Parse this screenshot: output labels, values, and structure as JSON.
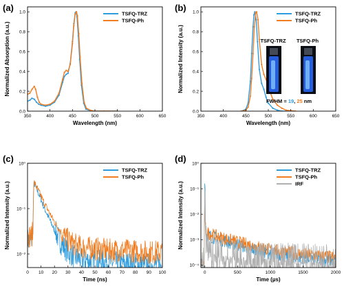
{
  "colors": {
    "trz": "#2e9bdc",
    "ph": "#f07d22",
    "irf": "#b0b0b0",
    "vial_glow": "#2a6cff"
  },
  "chart_data": [
    {
      "panel_label": "(a)",
      "type": "line",
      "xlabel": "Wavelength (nm)",
      "ylabel": "Normalized Absorption (a.u.)",
      "xlim": [
        350,
        650
      ],
      "ylim": [
        0,
        1.05
      ],
      "xticks": [
        350,
        400,
        450,
        500,
        550,
        600,
        650
      ],
      "xtick_labels": [
        "350",
        "400",
        "450",
        "500",
        "550",
        "600",
        "650"
      ],
      "yticks": [
        0,
        0.2,
        0.4,
        0.6,
        0.8,
        1.0
      ],
      "ytick_labels": [
        "0.0",
        "0.2",
        "0.4",
        "0.6",
        "0.8",
        "1.0"
      ],
      "legend": "top-right",
      "series": [
        {
          "name": "TSFQ-TRZ",
          "color": "#2e9bdc",
          "x": [
            350,
            355,
            360,
            365,
            370,
            375,
            380,
            390,
            400,
            410,
            420,
            428,
            432,
            436,
            440,
            445,
            450,
            453,
            456,
            458,
            460,
            463,
            466,
            470,
            475,
            480,
            490,
            500,
            520,
            550
          ],
          "y": [
            0.1,
            0.11,
            0.13,
            0.12,
            0.09,
            0.07,
            0.06,
            0.05,
            0.06,
            0.09,
            0.16,
            0.29,
            0.35,
            0.37,
            0.38,
            0.48,
            0.7,
            0.88,
            0.99,
            1.0,
            0.95,
            0.76,
            0.52,
            0.26,
            0.08,
            0.02,
            0.005,
            0,
            0,
            0
          ]
        },
        {
          "name": "TSFQ-Ph",
          "color": "#f07d22",
          "x": [
            350,
            355,
            360,
            365,
            368,
            372,
            376,
            380,
            390,
            400,
            410,
            420,
            428,
            432,
            436,
            440,
            445,
            450,
            453,
            456,
            459,
            461,
            464,
            467,
            471,
            476,
            481,
            490,
            500,
            520,
            550
          ],
          "y": [
            0.17,
            0.18,
            0.22,
            0.25,
            0.22,
            0.14,
            0.09,
            0.07,
            0.06,
            0.07,
            0.1,
            0.18,
            0.32,
            0.39,
            0.41,
            0.4,
            0.47,
            0.68,
            0.86,
            0.98,
            1.0,
            0.96,
            0.78,
            0.55,
            0.28,
            0.09,
            0.03,
            0.008,
            0,
            0,
            0
          ]
        }
      ]
    },
    {
      "panel_label": "(b)",
      "type": "line",
      "xlabel": "Wavelength (nm)",
      "ylabel": "Normalized Intensity (a.u.)",
      "xlim": [
        350,
        650
      ],
      "ylim": [
        0,
        1.05
      ],
      "xticks": [
        350,
        400,
        450,
        500,
        550,
        600,
        650
      ],
      "xtick_labels": [
        "350",
        "400",
        "450",
        "500",
        "550",
        "600",
        "650"
      ],
      "yticks": [
        0,
        0.2,
        0.4,
        0.6,
        0.8,
        1.0
      ],
      "ytick_labels": [
        "0.0",
        "0.2",
        "0.4",
        "0.6",
        "0.8",
        "1.0"
      ],
      "legend": "top-right",
      "annotation": {
        "prefix": "FWHM = ",
        "v1": "19",
        "sep": ", ",
        "v2": "25",
        "unit": " nm"
      },
      "vial_labels": [
        "TSFQ-TRZ",
        "TSFQ-Ph"
      ],
      "series": [
        {
          "name": "TSFQ-TRZ",
          "color": "#2e9bdc",
          "x": [
            440,
            450,
            455,
            460,
            463,
            466,
            468,
            470,
            473,
            476,
            480,
            485,
            490,
            495,
            500,
            510,
            520,
            530,
            540,
            550
          ],
          "y": [
            0,
            0.02,
            0.08,
            0.3,
            0.58,
            0.85,
            0.97,
            1.0,
            0.92,
            0.7,
            0.42,
            0.28,
            0.22,
            0.14,
            0.08,
            0.03,
            0.01,
            0,
            0,
            0
          ]
        },
        {
          "name": "TSFQ-Ph",
          "color": "#f07d22",
          "x": [
            440,
            450,
            455,
            460,
            463,
            466,
            469,
            472,
            474,
            477,
            480,
            485,
            490,
            495,
            500,
            505,
            510,
            520,
            530,
            540,
            550,
            560
          ],
          "y": [
            0,
            0.01,
            0.04,
            0.15,
            0.33,
            0.58,
            0.85,
            0.99,
            1.0,
            0.92,
            0.72,
            0.47,
            0.37,
            0.32,
            0.25,
            0.18,
            0.12,
            0.06,
            0.03,
            0.01,
            0.005,
            0
          ]
        }
      ]
    },
    {
      "panel_label": "(c)",
      "type": "line",
      "xlabel": "Time (ns)",
      "ylabel": "Normalized Intensity (a.u.)",
      "xlim": [
        0,
        100
      ],
      "ylim": [
        0.005,
        1
      ],
      "yscale": "log",
      "xticks": [
        0,
        10,
        20,
        30,
        40,
        50,
        60,
        70,
        80,
        90,
        100
      ],
      "xtick_labels": [
        "0",
        "10",
        "20",
        "30",
        "40",
        "50",
        "60",
        "70",
        "80",
        "90",
        "100"
      ],
      "yticks": [
        0.01,
        0.1,
        1
      ],
      "ytick_labels": [
        "10⁻²",
        "10⁻¹",
        "10⁰"
      ],
      "legend": "top-right",
      "series": [
        {
          "name": "TSFQ-TRZ",
          "color": "#2e9bdc",
          "noisy": true,
          "x": [
            0,
            1,
            2,
            3,
            4,
            4.5,
            5,
            6,
            8,
            10,
            12,
            15,
            18,
            20,
            25,
            30,
            35,
            40,
            50,
            60,
            70,
            80,
            90,
            100
          ],
          "y": [
            0.02,
            0.02,
            0.02,
            0.02,
            0.025,
            0.3,
            0.36,
            0.3,
            0.22,
            0.16,
            0.11,
            0.07,
            0.045,
            0.033,
            0.017,
            0.011,
            0.0085,
            0.0075,
            0.007,
            0.0065,
            0.0062,
            0.006,
            0.0058,
            0.0057
          ]
        },
        {
          "name": "TSFQ-Ph",
          "color": "#f07d22",
          "noisy": true,
          "x": [
            0,
            1,
            2,
            3,
            4,
            4.5,
            5,
            6,
            8,
            10,
            12,
            15,
            18,
            20,
            25,
            30,
            35,
            40,
            50,
            60,
            70,
            80,
            90,
            100
          ],
          "y": [
            0.025,
            0.025,
            0.025,
            0.025,
            0.03,
            0.32,
            0.38,
            0.33,
            0.25,
            0.19,
            0.14,
            0.095,
            0.065,
            0.05,
            0.03,
            0.02,
            0.016,
            0.014,
            0.013,
            0.012,
            0.012,
            0.0115,
            0.011,
            0.011
          ]
        }
      ]
    },
    {
      "panel_label": "(d)",
      "type": "line",
      "xlabel": "Time (µs)",
      "ylabel": "Normalized Intensity (a.u.)",
      "xlim": [
        -60,
        2000
      ],
      "ylim": [
        8e-05,
        1
      ],
      "yscale": "log",
      "xticks": [
        0,
        500,
        1000,
        1500,
        2000
      ],
      "xtick_labels": [
        "0",
        "500",
        "1000",
        "1500",
        "2000"
      ],
      "yticks": [
        0.0001,
        0.001,
        0.01,
        0.1,
        1
      ],
      "ytick_labels": [
        "10⁻⁴",
        "10⁻³",
        "10⁻²",
        "10⁻¹",
        "10⁰"
      ],
      "legend": "top-right",
      "series": [
        {
          "name": "TSFQ-TRZ",
          "color": "#2e9bdc",
          "noisy": true,
          "x": [
            -60,
            -10,
            0,
            5,
            10,
            20,
            50,
            100,
            200,
            300,
            500,
            700,
            1000,
            1200,
            1500,
            1800,
            2000
          ],
          "y": [
            0.0001,
            0.0001,
            0.5,
            0.06,
            0.002,
            0.0017,
            0.0015,
            0.0013,
            0.0011,
            0.0009,
            0.00065,
            0.00045,
            0.0003,
            0.00025,
            0.0002,
            0.00016,
            0.00015
          ]
        },
        {
          "name": "TSFQ-Ph",
          "color": "#f07d22",
          "noisy": true,
          "x": [
            -60,
            -10,
            0,
            5,
            10,
            20,
            50,
            100,
            200,
            300,
            500,
            700,
            1000,
            1200,
            1500,
            1800,
            2000
          ],
          "y": [
            0.00012,
            0.00012,
            0.05,
            0.004,
            0.0022,
            0.002,
            0.0018,
            0.0016,
            0.0013,
            0.0011,
            0.0008,
            0.0006,
            0.0004,
            0.00033,
            0.00027,
            0.00022,
            0.0002
          ]
        },
        {
          "name": "IRF",
          "color": "#b0b0b0",
          "noisy": true,
          "irf": true,
          "x": [
            -60,
            -10,
            0,
            10,
            20,
            100,
            500,
            1000,
            1500,
            2000
          ],
          "y": [
            0.0001,
            0.0001,
            0.3,
            0.002,
            0.0003,
            0.00022,
            0.00015,
            0.00013,
            0.00012,
            0.00011
          ]
        }
      ]
    }
  ]
}
